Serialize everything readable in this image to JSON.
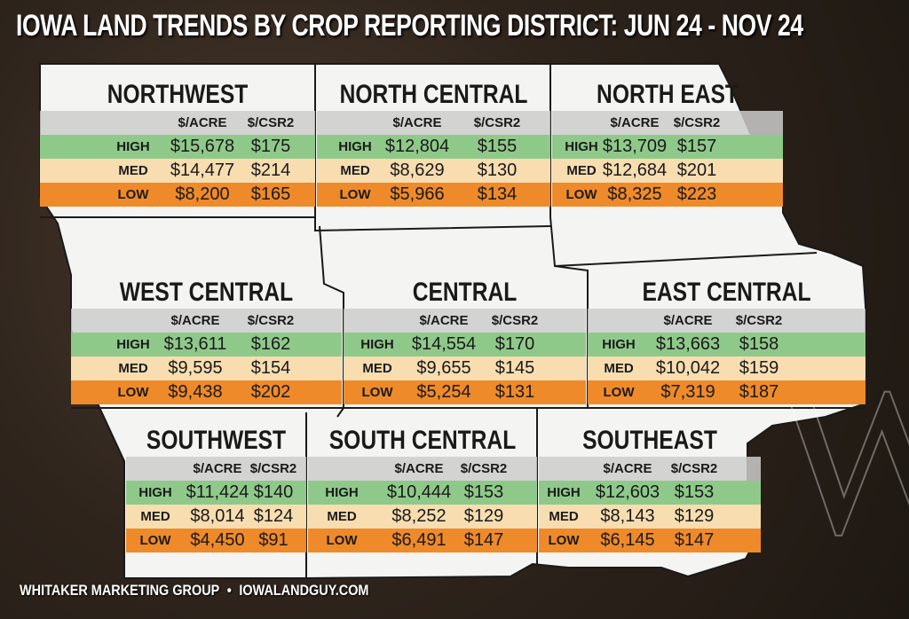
{
  "title": "IOWA LAND TRENDS BY CROP REPORTING DISTRICT: JUN 24 - NOV 24",
  "columns": [
    "$/ACRE",
    "$/CSR2"
  ],
  "row_labels": [
    "HIGH",
    "MED",
    "LOW"
  ],
  "districts": [
    {
      "name": "NORTHWEST",
      "rows": [
        [
          "$15,678",
          "$175"
        ],
        [
          "$14,477",
          "$214"
        ],
        [
          "$8,200",
          "$165"
        ]
      ]
    },
    {
      "name": "NORTH CENTRAL",
      "rows": [
        [
          "$12,804",
          "$155"
        ],
        [
          "$8,629",
          "$130"
        ],
        [
          "$5,966",
          "$134"
        ]
      ]
    },
    {
      "name": "NORTH EAST",
      "rows": [
        [
          "$13,709",
          "$157"
        ],
        [
          "$12,684",
          "$201"
        ],
        [
          "$8,325",
          "$223"
        ]
      ]
    },
    {
      "name": "WEST CENTRAL",
      "rows": [
        [
          "$13,611",
          "$162"
        ],
        [
          "$9,595",
          "$154"
        ],
        [
          "$9,438",
          "$202"
        ]
      ]
    },
    {
      "name": "CENTRAL",
      "rows": [
        [
          "$14,554",
          "$170"
        ],
        [
          "$9,655",
          "$145"
        ],
        [
          "$5,254",
          "$131"
        ]
      ]
    },
    {
      "name": "EAST CENTRAL",
      "rows": [
        [
          "$13,663",
          "$158"
        ],
        [
          "$10,042",
          "$159"
        ],
        [
          "$7,319",
          "$187"
        ]
      ]
    },
    {
      "name": "SOUTHWEST",
      "rows": [
        [
          "$11,424",
          "$140"
        ],
        [
          "$8,014",
          "$124"
        ],
        [
          "$4,450",
          "$91"
        ]
      ]
    },
    {
      "name": "SOUTH CENTRAL",
      "rows": [
        [
          "$10,444",
          "$153"
        ],
        [
          "$8,252",
          "$129"
        ],
        [
          "$6,491",
          "$147"
        ]
      ]
    },
    {
      "name": "SOUTHEAST",
      "rows": [
        [
          "$12,603",
          "$153"
        ],
        [
          "$8,143",
          "$129"
        ],
        [
          "$6,145",
          "$147"
        ]
      ]
    }
  ],
  "footer": {
    "company": "WHITAKER MARKETING GROUP",
    "separator": "•",
    "site": "IOWALANDGUY.COM"
  }
}
